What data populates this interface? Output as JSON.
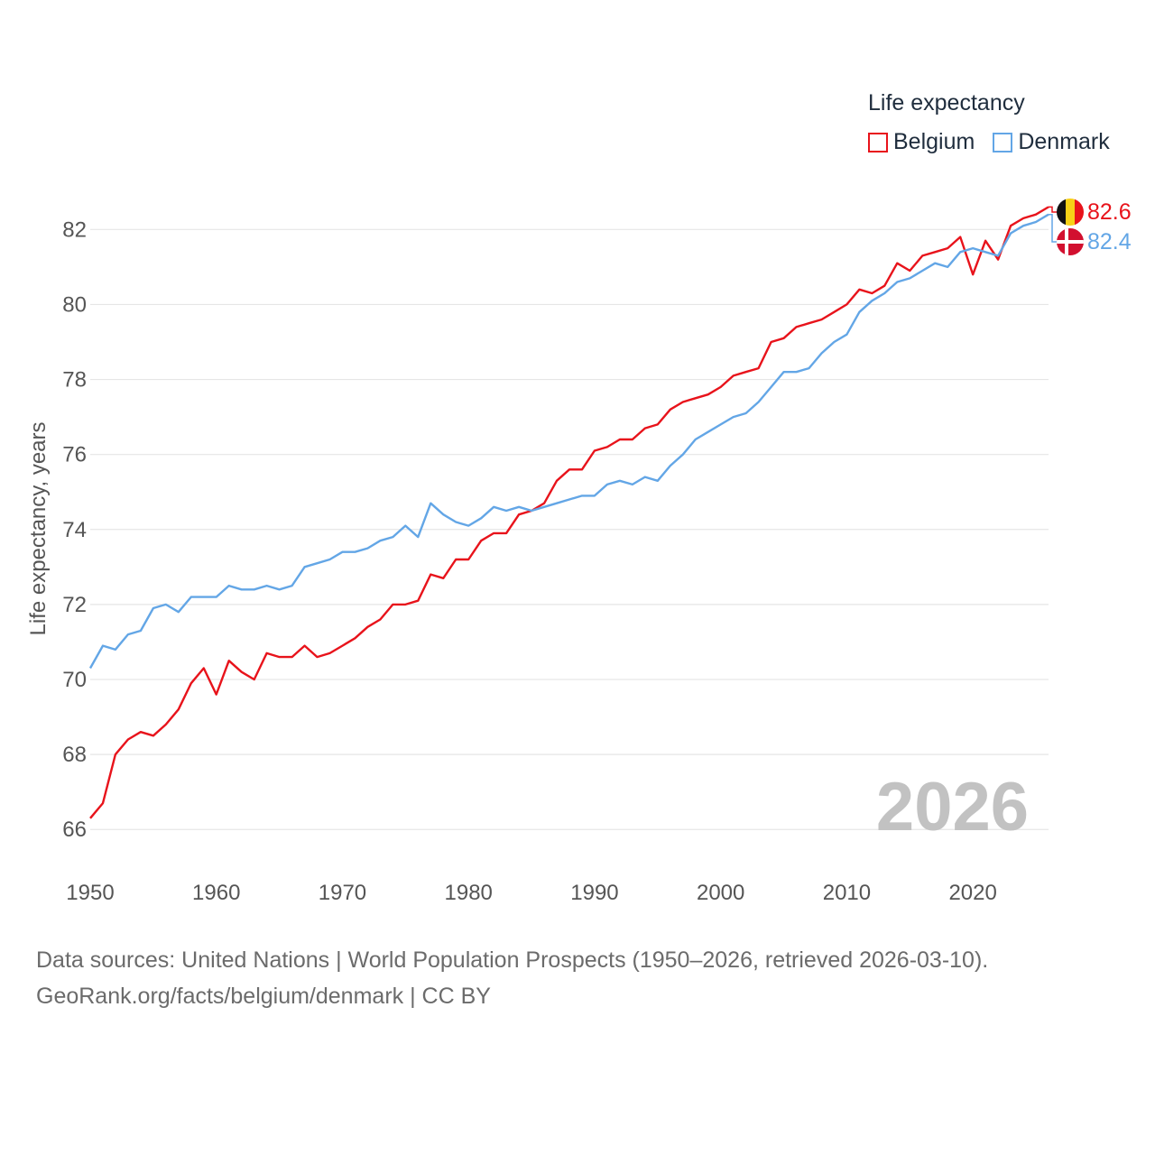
{
  "legend": {
    "title": "Life expectancy",
    "items": [
      {
        "label": "Belgium",
        "color": "#e8131b"
      },
      {
        "label": "Denmark",
        "color": "#63a6e6"
      }
    ]
  },
  "footer": {
    "line1": "Data sources: United Nations | World Population Prospects (1950–2026, retrieved 2026-03-10).",
    "line2": "GeoRank.org/facts/belgium/denmark | CC BY"
  },
  "chart_data": {
    "type": "line",
    "title": "Life expectancy",
    "xlabel": "",
    "ylabel": "Life expectancy, years",
    "xlim": [
      1950,
      2026
    ],
    "ylim": [
      65.5,
      83.5
    ],
    "xticks": [
      1950,
      1960,
      1970,
      1980,
      1990,
      2000,
      2010,
      2020
    ],
    "yticks": [
      66,
      68,
      70,
      72,
      74,
      76,
      78,
      80,
      82
    ],
    "grid": true,
    "legend_position": "top-right",
    "year_annotation": "2026",
    "x": [
      1950,
      1951,
      1952,
      1953,
      1954,
      1955,
      1956,
      1957,
      1958,
      1959,
      1960,
      1961,
      1962,
      1963,
      1964,
      1965,
      1966,
      1967,
      1968,
      1969,
      1970,
      1971,
      1972,
      1973,
      1974,
      1975,
      1976,
      1977,
      1978,
      1979,
      1980,
      1981,
      1982,
      1983,
      1984,
      1985,
      1986,
      1987,
      1988,
      1989,
      1990,
      1991,
      1992,
      1993,
      1994,
      1995,
      1996,
      1997,
      1998,
      1999,
      2000,
      2001,
      2002,
      2003,
      2004,
      2005,
      2006,
      2007,
      2008,
      2009,
      2010,
      2011,
      2012,
      2013,
      2014,
      2015,
      2016,
      2017,
      2018,
      2019,
      2020,
      2021,
      2022,
      2023,
      2024,
      2025,
      2026
    ],
    "series": [
      {
        "name": "Belgium",
        "color": "#e8131b",
        "end_label": "82.6",
        "values": [
          66.3,
          66.7,
          68.0,
          68.4,
          68.6,
          68.5,
          68.8,
          69.2,
          69.9,
          70.3,
          69.6,
          70.5,
          70.2,
          70.0,
          70.7,
          70.6,
          70.6,
          70.9,
          70.6,
          70.7,
          70.9,
          71.1,
          71.4,
          71.6,
          72.0,
          72.0,
          72.1,
          72.8,
          72.7,
          73.2,
          73.2,
          73.7,
          73.9,
          73.9,
          74.4,
          74.5,
          74.7,
          75.3,
          75.6,
          75.6,
          76.1,
          76.2,
          76.4,
          76.4,
          76.7,
          76.8,
          77.2,
          77.4,
          77.5,
          77.6,
          77.8,
          78.1,
          78.2,
          78.3,
          79.0,
          79.1,
          79.4,
          79.5,
          79.6,
          79.8,
          80.0,
          80.4,
          80.3,
          80.5,
          81.1,
          80.9,
          81.3,
          81.4,
          81.5,
          81.8,
          80.8,
          81.7,
          81.2,
          82.1,
          82.3,
          82.4,
          82.6
        ]
      },
      {
        "name": "Denmark",
        "color": "#63a6e6",
        "end_label": "82.4",
        "values": [
          70.3,
          70.9,
          70.8,
          71.2,
          71.3,
          71.9,
          72.0,
          71.8,
          72.2,
          72.2,
          72.2,
          72.5,
          72.4,
          72.4,
          72.5,
          72.4,
          72.5,
          73.0,
          73.1,
          73.2,
          73.4,
          73.4,
          73.5,
          73.7,
          73.8,
          74.1,
          73.8,
          74.7,
          74.4,
          74.2,
          74.1,
          74.3,
          74.6,
          74.5,
          74.6,
          74.5,
          74.6,
          74.7,
          74.8,
          74.9,
          74.9,
          75.2,
          75.3,
          75.2,
          75.4,
          75.3,
          75.7,
          76.0,
          76.4,
          76.6,
          76.8,
          77.0,
          77.1,
          77.4,
          77.8,
          78.2,
          78.2,
          78.3,
          78.7,
          79.0,
          79.2,
          79.8,
          80.1,
          80.3,
          80.6,
          80.7,
          80.9,
          81.1,
          81.0,
          81.4,
          81.5,
          81.4,
          81.3,
          81.9,
          82.1,
          82.2,
          82.4
        ]
      }
    ]
  }
}
